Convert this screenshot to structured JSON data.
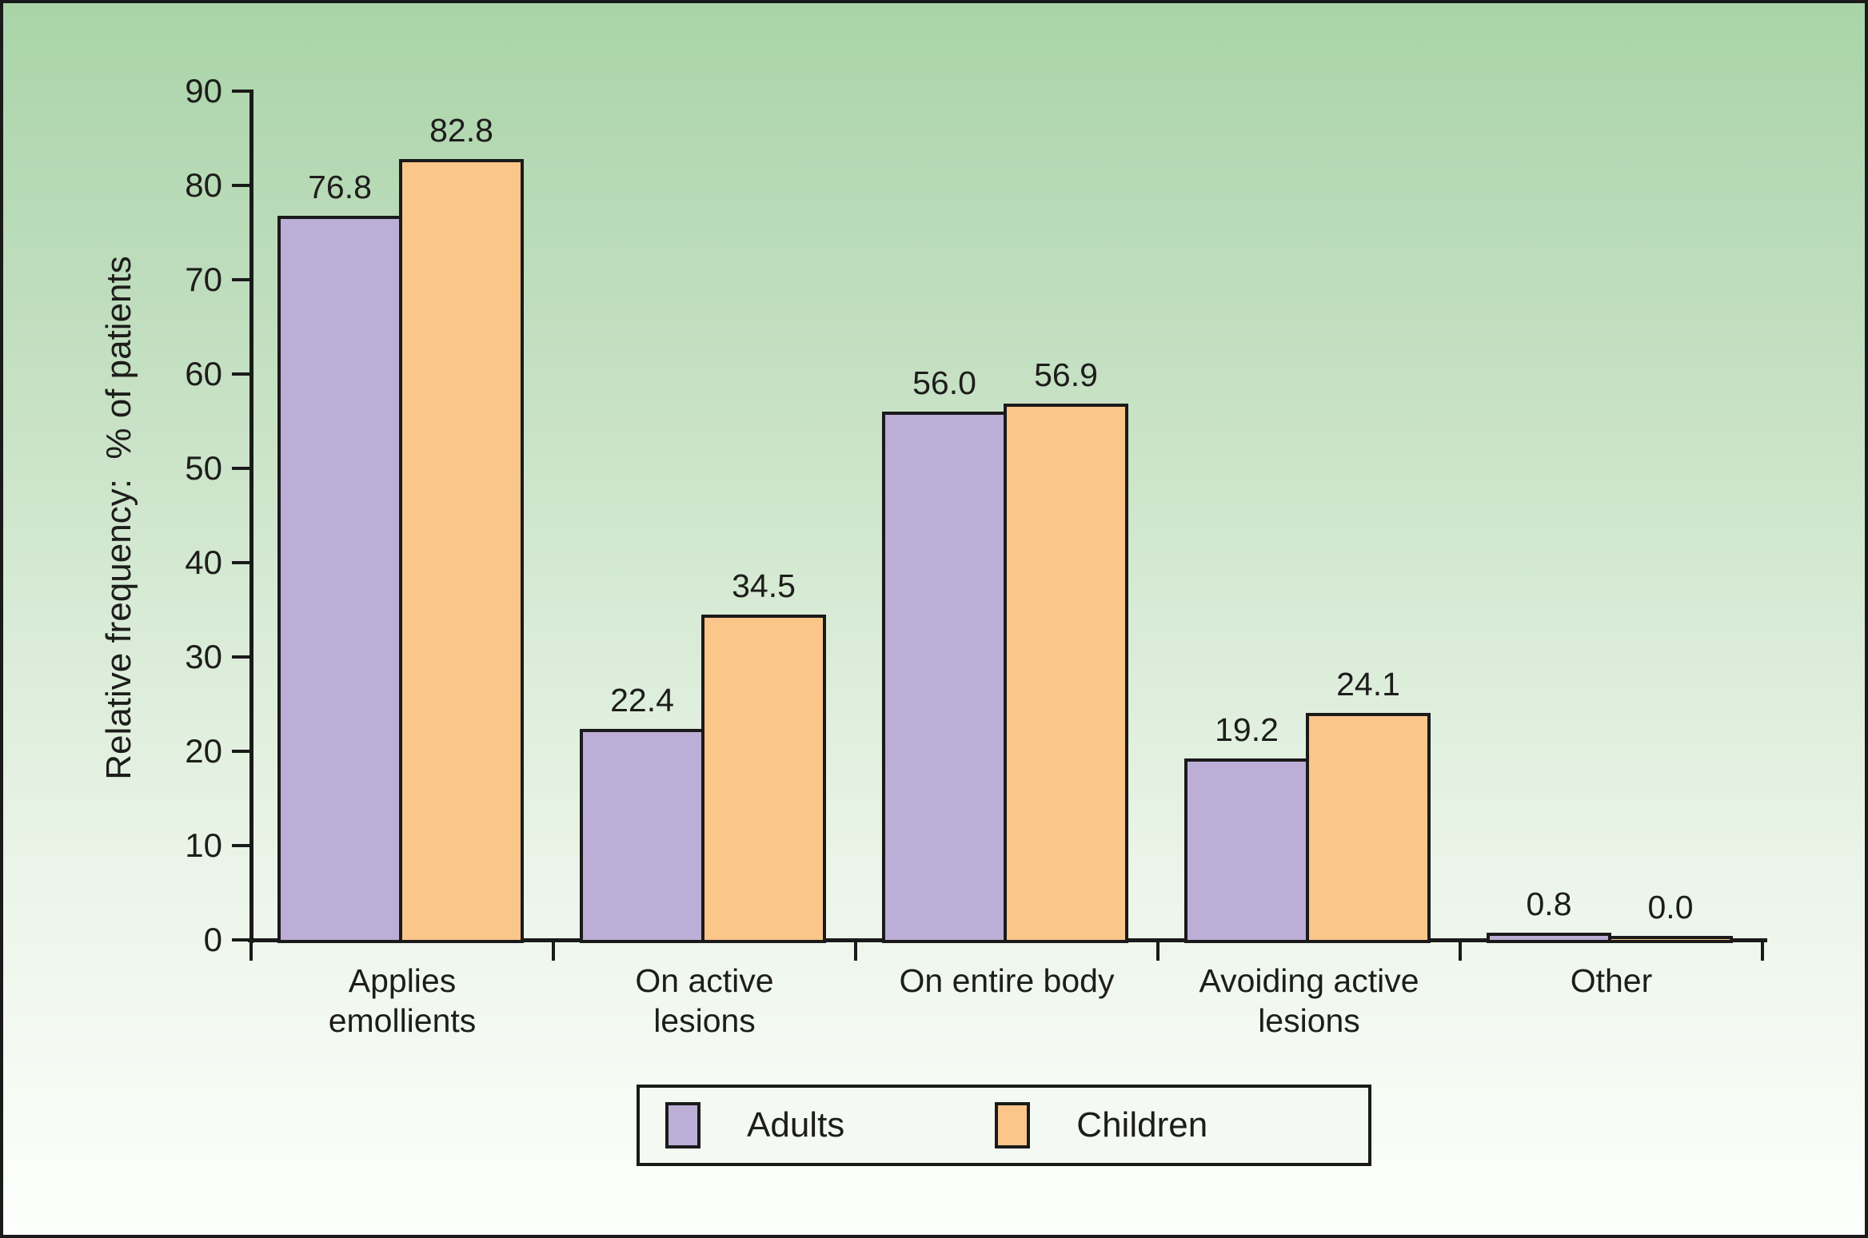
{
  "chart_data": {
    "type": "bar",
    "title": "",
    "xlabel": "",
    "ylabel": "Relative frequency:  % of patients",
    "ylim": [
      0,
      90
    ],
    "yticks": [
      0,
      10,
      20,
      30,
      40,
      50,
      60,
      70,
      80,
      90
    ],
    "grid": false,
    "legend_position": "bottom-center",
    "categories": [
      "Applies\nemollients",
      "On active\nlesions",
      "On entire body",
      "Avoiding active\nlesions",
      "Other"
    ],
    "series": [
      {
        "name": "Adults",
        "color": "#bcaed6",
        "values": [
          76.8,
          22.4,
          56.0,
          19.2,
          0.8
        ],
        "labels": [
          "76.8",
          "22.4",
          "56.0",
          "19.2",
          "0.8"
        ]
      },
      {
        "name": "Children",
        "color": "#fbc689",
        "values": [
          82.8,
          34.5,
          56.9,
          24.1,
          0.0
        ],
        "labels": [
          "82.8",
          "34.5",
          "56.9",
          "24.1",
          "0.0"
        ]
      }
    ]
  },
  "style": {
    "background_top": "#a9d4a8",
    "background_bottom": "#fdfffc",
    "line_color": "#1a1a1a",
    "legend_background": "#f5f9f3"
  }
}
